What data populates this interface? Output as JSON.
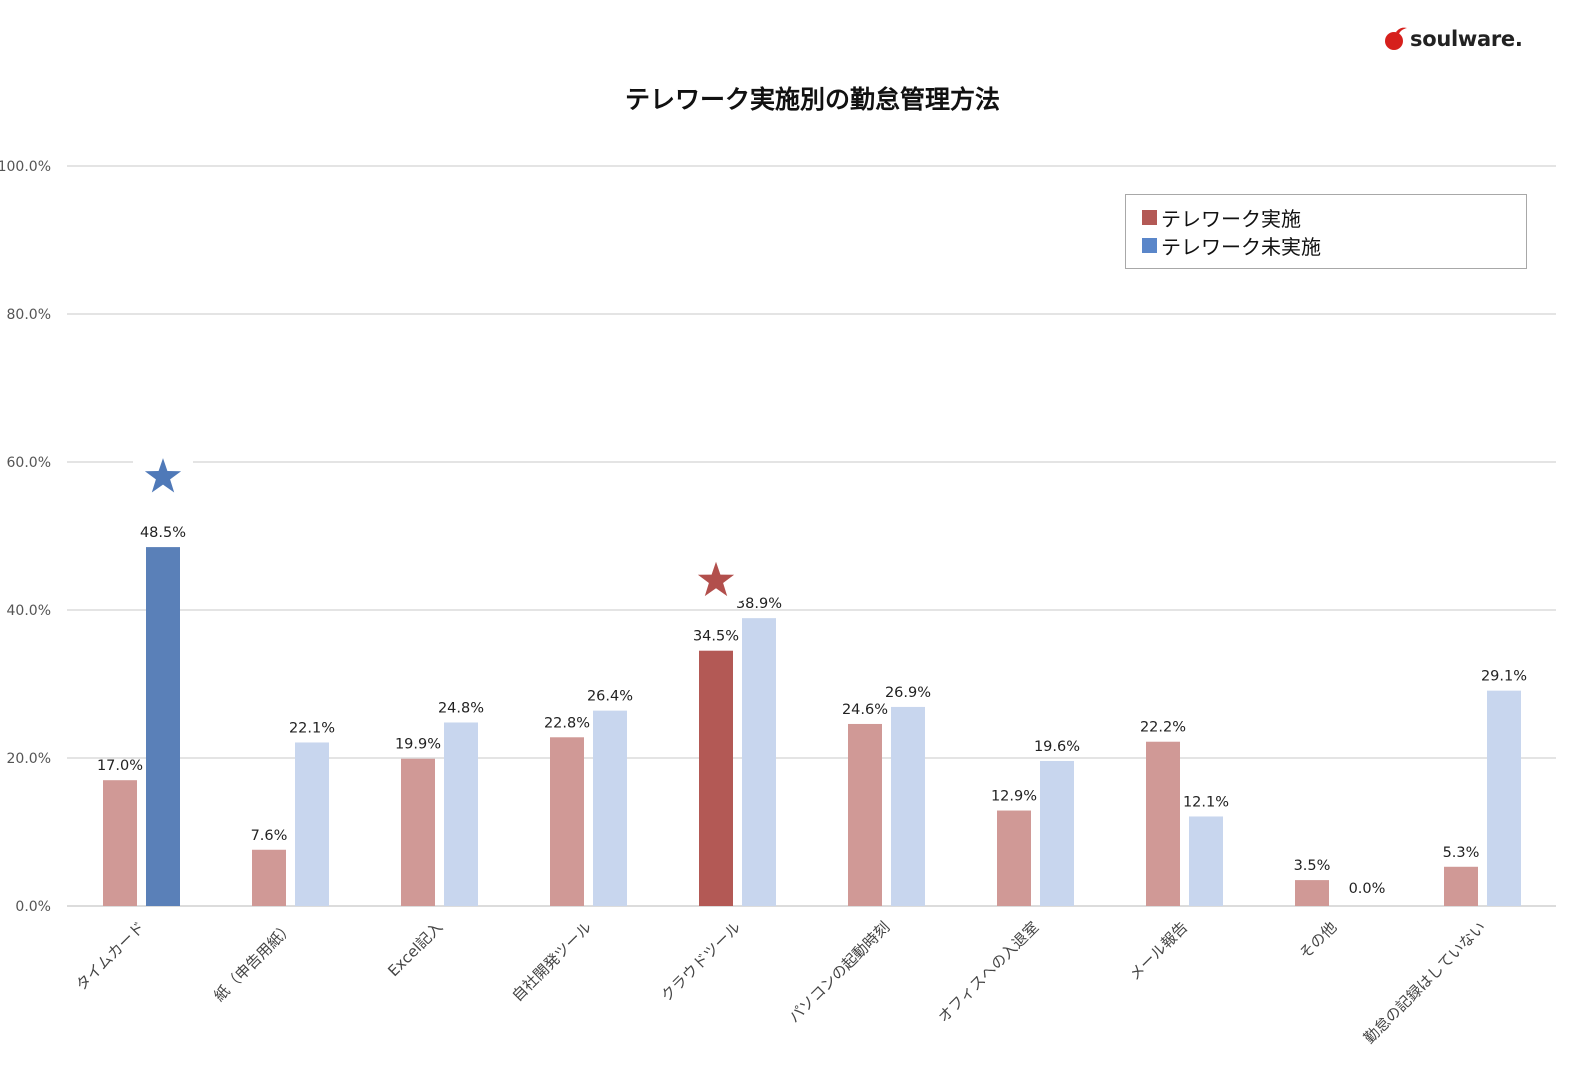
{
  "logo": {
    "text": "soulware."
  },
  "chart_data": {
    "type": "bar",
    "title": "テレワーク実施別の勤怠管理方法",
    "categories": [
      "タイムカード",
      "紙（申告用紙）",
      "Excel記入",
      "自社開発ツール",
      "クラウドツール",
      "パソコンの起動時刻",
      "オフィスへの入退室",
      "メール報告",
      "その他",
      "勤怠の記録はしていない"
    ],
    "series": [
      {
        "name": "テレワーク実施",
        "values": [
          17.0,
          7.6,
          19.9,
          22.8,
          34.5,
          24.6,
          12.9,
          22.2,
          3.5,
          5.3
        ],
        "labels": [
          "17.0%",
          "7.6%",
          "19.9%",
          "22.8%",
          "34.5%",
          "24.6%",
          "12.9%",
          "22.2%",
          "3.5%",
          "5.3%"
        ],
        "color": "#d09996",
        "highlight_color": "#b35955",
        "highlight_index": 4,
        "legend_color": "#b35955"
      },
      {
        "name": "テレワーク未実施",
        "values": [
          48.5,
          22.1,
          24.8,
          26.4,
          38.9,
          26.9,
          19.6,
          12.1,
          0.0,
          29.1
        ],
        "labels": [
          "48.5%",
          "22.1%",
          "24.8%",
          "26.4%",
          "38.9%",
          "26.9%",
          "19.6%",
          "12.1%",
          "0.0%",
          "29.1%"
        ],
        "color": "#c8d6ee",
        "highlight_color": "#5a80b8",
        "highlight_index": 0,
        "legend_color": "#5a86c9"
      }
    ],
    "yticks": [
      "0.0%",
      "20.0%",
      "40.0%",
      "60.0%",
      "80.0%",
      "100.0%"
    ],
    "ylim": [
      0,
      100
    ],
    "grid": true,
    "legend_position": "top-right",
    "annotations": [
      {
        "type": "star",
        "series": 1,
        "category": 0,
        "color": "#4f79b8"
      },
      {
        "type": "star",
        "series": 0,
        "category": 4,
        "color": "#b24f4c"
      }
    ]
  }
}
